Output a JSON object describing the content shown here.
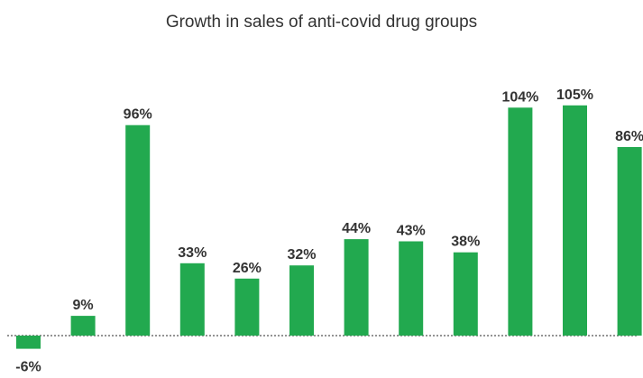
{
  "chart_data": {
    "type": "bar",
    "title": "Growth in sales of anti-covid drug groups",
    "xlabel": "",
    "ylabel": "",
    "values": [
      -6,
      9,
      96,
      33,
      26,
      32,
      44,
      43,
      38,
      104,
      105,
      86
    ],
    "data_labels": [
      "-6%",
      "9%",
      "96%",
      "33%",
      "26%",
      "32%",
      "44%",
      "43%",
      "38%",
      "104%",
      "105%",
      "86%"
    ],
    "ylim": [
      -6,
      105
    ],
    "grid": false,
    "legend": "none",
    "baseline_style": "dotted",
    "bar_color": "#22A94F"
  }
}
